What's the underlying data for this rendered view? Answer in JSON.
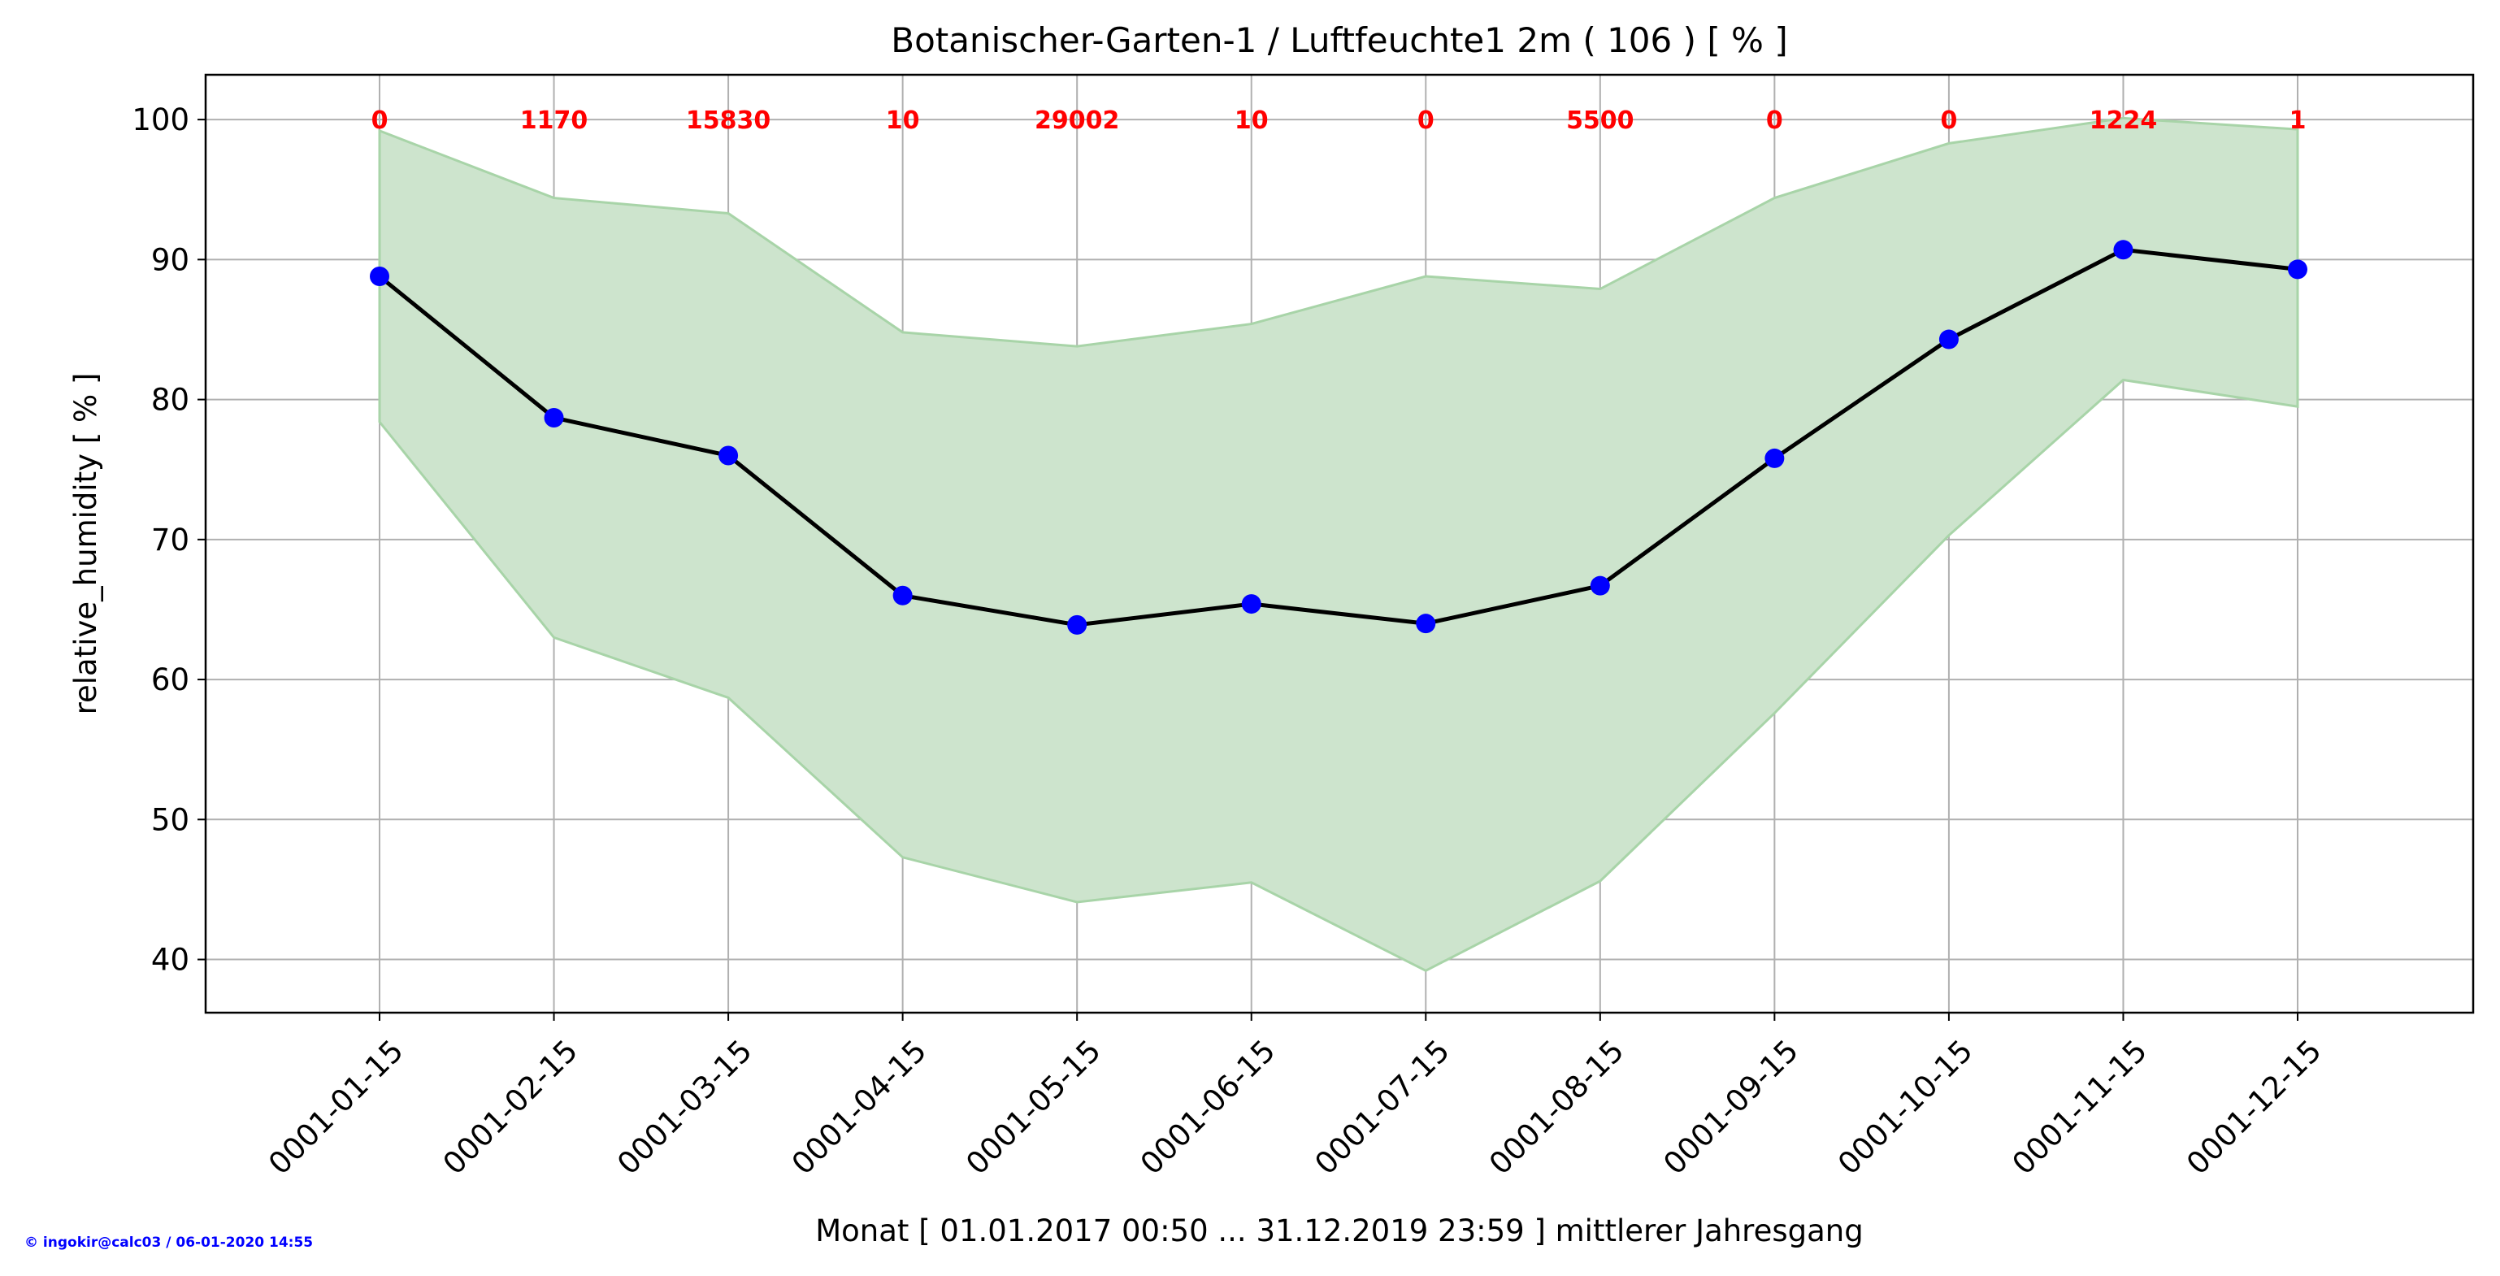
{
  "chart_data": {
    "type": "line",
    "title": "Botanischer-Garten-1 / Luftfeuchte1 2m ( 106 ) [ % ]",
    "xlabel": "Monat [ 01.01.2017 00:50 ... 31.12.2019 23:59 ] mittlerer Jahresgang",
    "ylabel": "relative_humidity [ % ]",
    "ylim": [
      36.2,
      103.2
    ],
    "yticks": [
      40,
      50,
      60,
      70,
      80,
      90,
      100
    ],
    "grid": true,
    "categories": [
      "0001-01-15",
      "0001-02-15",
      "0001-03-15",
      "0001-04-15",
      "0001-05-15",
      "0001-06-15",
      "0001-07-15",
      "0001-08-15",
      "0001-09-15",
      "0001-10-15",
      "0001-11-15",
      "0001-12-15"
    ],
    "mean": [
      88.8,
      78.7,
      76.0,
      66.0,
      63.9,
      65.4,
      64.0,
      66.7,
      75.8,
      84.3,
      90.7,
      89.3
    ],
    "upper": [
      99.2,
      94.4,
      93.3,
      84.8,
      83.8,
      85.4,
      88.8,
      87.9,
      94.4,
      98.3,
      100.1,
      99.3
    ],
    "lower": [
      78.4,
      63.0,
      58.7,
      47.3,
      44.1,
      45.5,
      39.2,
      45.6,
      57.6,
      70.3,
      81.4,
      79.5
    ],
    "annotations": [
      "0",
      "1170",
      "15830",
      "10",
      "29002",
      "10",
      "0",
      "5500",
      "0",
      "0",
      "1224",
      "1"
    ],
    "colors": {
      "line": "#000000",
      "marker": "#0000ff",
      "band": "#cde4cd",
      "band_edge": "#a8d4a8",
      "annotation": "#ff0000",
      "credit": "#0000ff"
    }
  },
  "credit": "© ingokir@calc03 / 06-01-2020 14:55"
}
